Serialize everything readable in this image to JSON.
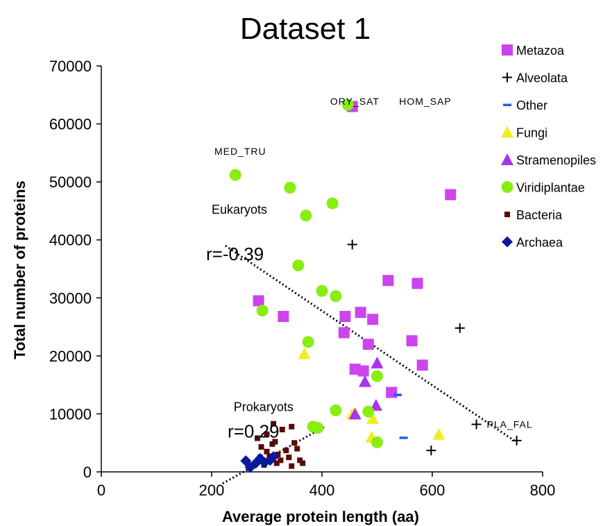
{
  "chart_data": {
    "type": "scatter",
    "title": "Dataset 1",
    "xlabel": "Average protein length (aa)",
    "ylabel": "Total number of proteins",
    "xlim": [
      0,
      800
    ],
    "ylim": [
      0,
      70000
    ],
    "xticks": [
      0,
      200,
      400,
      600,
      800
    ],
    "yticks": [
      0,
      10000,
      20000,
      30000,
      40000,
      50000,
      60000,
      70000
    ],
    "grid": false,
    "legend_position": "right",
    "series": [
      {
        "name": "Metazoa",
        "marker": "square",
        "color": "#cc44ee",
        "points": [
          [
            455,
            63000
          ],
          [
            633,
            47800
          ],
          [
            285,
            29500
          ],
          [
            330,
            26800
          ],
          [
            520,
            33000
          ],
          [
            573,
            32500
          ],
          [
            442,
            26800
          ],
          [
            470,
            27500
          ],
          [
            492,
            26300
          ],
          [
            440,
            24000
          ],
          [
            484,
            22000
          ],
          [
            563,
            22600
          ],
          [
            582,
            18400
          ],
          [
            460,
            17700
          ],
          [
            475,
            17400
          ],
          [
            526,
            13700
          ]
        ]
      },
      {
        "name": "Alveolata",
        "marker": "plus",
        "color": "#000000",
        "points": [
          [
            455,
            39200
          ],
          [
            650,
            24800
          ],
          [
            680,
            8200
          ],
          [
            598,
            3700
          ],
          [
            753,
            5400
          ]
        ]
      },
      {
        "name": "Other",
        "marker": "dash",
        "color": "#1a5cff",
        "points": [
          [
            537,
            13300
          ],
          [
            548,
            5900
          ]
        ]
      },
      {
        "name": "Fungi",
        "marker": "triangle",
        "color": "#eeee22",
        "points": [
          [
            368,
            20400
          ],
          [
            455,
            10000
          ],
          [
            492,
            9200
          ],
          [
            490,
            6000
          ],
          [
            612,
            6500
          ]
        ]
      },
      {
        "name": "Stramenopiles",
        "marker": "triangle",
        "color": "#aa33ee",
        "points": [
          [
            500,
            18800
          ],
          [
            478,
            15600
          ],
          [
            498,
            11500
          ],
          [
            460,
            10000
          ]
        ]
      },
      {
        "name": "Viridiplantae",
        "marker": "circle",
        "color": "#88ee11",
        "points": [
          [
            447,
            63300
          ],
          [
            243,
            51200
          ],
          [
            342,
            49000
          ],
          [
            419,
            46300
          ],
          [
            371,
            44200
          ],
          [
            357,
            35600
          ],
          [
            400,
            31200
          ],
          [
            425,
            30300
          ],
          [
            292,
            27800
          ],
          [
            375,
            22400
          ],
          [
            500,
            16500
          ],
          [
            425,
            10600
          ],
          [
            484,
            10400
          ],
          [
            384,
            7800
          ],
          [
            392,
            7600
          ],
          [
            500,
            5100
          ]
        ]
      },
      {
        "name": "Bacteria",
        "marker": "smallsquare",
        "color": "#5a0a0a",
        "points": [
          [
            283,
            5800
          ],
          [
            290,
            4300
          ],
          [
            300,
            3500
          ],
          [
            305,
            2700
          ],
          [
            310,
            4800
          ],
          [
            315,
            5200
          ],
          [
            320,
            3000
          ],
          [
            325,
            2000
          ],
          [
            328,
            7300
          ],
          [
            335,
            3700
          ],
          [
            340,
            2500
          ],
          [
            345,
            7800
          ],
          [
            350,
            5000
          ],
          [
            355,
            4000
          ],
          [
            360,
            2000
          ],
          [
            365,
            1500
          ],
          [
            312,
            8300
          ],
          [
            300,
            6500
          ],
          [
            288,
            2500
          ],
          [
            318,
            1500
          ],
          [
            285,
            1800
          ],
          [
            295,
            1200
          ],
          [
            345,
            1000
          ]
        ]
      },
      {
        "name": "Archaea",
        "marker": "diamond",
        "color": "#0a1a99",
        "points": [
          [
            262,
            1900
          ],
          [
            270,
            800
          ],
          [
            280,
            1500
          ],
          [
            288,
            2300
          ],
          [
            296,
            1600
          ],
          [
            306,
            2000
          ],
          [
            312,
            2600
          ]
        ]
      }
    ],
    "annotations": [
      {
        "text": "ORY_SAT",
        "x": 415,
        "y": 63300
      },
      {
        "text": "HOM_SAP",
        "x": 540,
        "y": 63300
      },
      {
        "text": "MED_TRU",
        "x": 205,
        "y": 54700
      },
      {
        "text": "PLA_FAL",
        "x": 782,
        "y": 7600
      },
      {
        "text": "Eukaryots",
        "x": 200,
        "y": 44500
      },
      {
        "text": "r=-0.39",
        "x": 190,
        "y": 36500
      },
      {
        "text": "Prokaryots",
        "x": 240,
        "y": 10500
      },
      {
        "text": "r=0.29",
        "x": 229,
        "y": 5900
      }
    ],
    "trendlines": [
      {
        "name": "Eukaryots",
        "x": [
          225,
          750
        ],
        "y": [
          39000,
          5300
        ]
      },
      {
        "name": "Prokaryots",
        "x": [
          220,
          405
        ],
        "y": [
          -2000,
          7800
        ]
      }
    ]
  }
}
